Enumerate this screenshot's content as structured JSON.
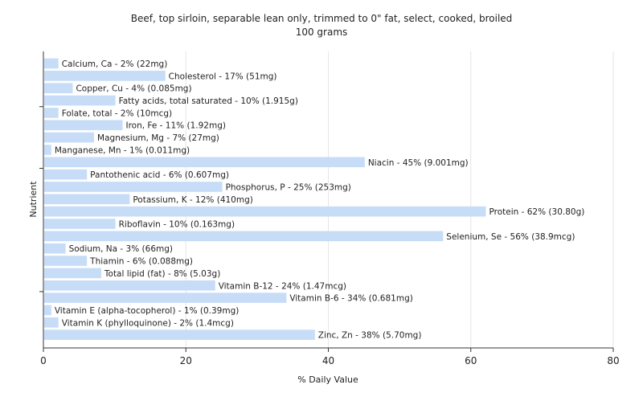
{
  "chart_data": {
    "type": "bar",
    "orientation": "horizontal",
    "title": "Beef, top sirloin, separable lean only, trimmed to 0\" fat, select, cooked, broiled",
    "subtitle": "100 grams",
    "xlabel": "% Daily Value",
    "ylabel": "Nutrient",
    "xlim": [
      0,
      80
    ],
    "xticks": [
      "0",
      "20",
      "40",
      "60",
      "80"
    ],
    "grid": true,
    "bar_color": "#c6dcf7",
    "categories": [
      "Calcium, Ca",
      "Cholesterol",
      "Copper, Cu",
      "Fatty acids, total saturated",
      "Folate, total",
      "Iron, Fe",
      "Magnesium, Mg",
      "Manganese, Mn",
      "Niacin",
      "Pantothenic acid",
      "Phosphorus, P",
      "Potassium, K",
      "Protein",
      "Riboflavin",
      "Selenium, Se",
      "Sodium, Na",
      "Thiamin",
      "Total lipid (fat)",
      "Vitamin B-12",
      "Vitamin B-6",
      "Vitamin E (alpha-tocopherol)",
      "Vitamin K (phylloquinone)",
      "Zinc, Zn"
    ],
    "values": [
      2,
      17,
      4,
      10,
      2,
      11,
      7,
      1,
      45,
      6,
      25,
      12,
      62,
      10,
      56,
      3,
      6,
      8,
      24,
      34,
      1,
      2,
      38
    ],
    "labels": [
      "Calcium, Ca - 2% (22mg)",
      "Cholesterol - 17% (51mg)",
      "Copper, Cu - 4% (0.085mg)",
      "Fatty acids, total saturated - 10% (1.915g)",
      "Folate, total - 2% (10mcg)",
      "Iron, Fe - 11% (1.92mg)",
      "Magnesium, Mg - 7% (27mg)",
      "Manganese, Mn - 1% (0.011mg)",
      "Niacin - 45% (9.001mg)",
      "Pantothenic acid - 6% (0.607mg)",
      "Phosphorus, P - 25% (253mg)",
      "Potassium, K - 12% (410mg)",
      "Protein - 62% (30.80g)",
      "Riboflavin - 10% (0.163mg)",
      "Selenium, Se - 56% (38.9mcg)",
      "Sodium, Na - 3% (66mg)",
      "Thiamin - 6% (0.088mg)",
      "Total lipid (fat) - 8% (5.03g)",
      "Vitamin B-12 - 24% (1.47mcg)",
      "Vitamin B-6 - 34% (0.681mg)",
      "Vitamin E (alpha-tocopherol) - 1% (0.39mg)",
      "Vitamin K (phylloquinone) - 2% (1.4mcg)",
      "Zinc, Zn - 38% (5.70mg)"
    ]
  }
}
